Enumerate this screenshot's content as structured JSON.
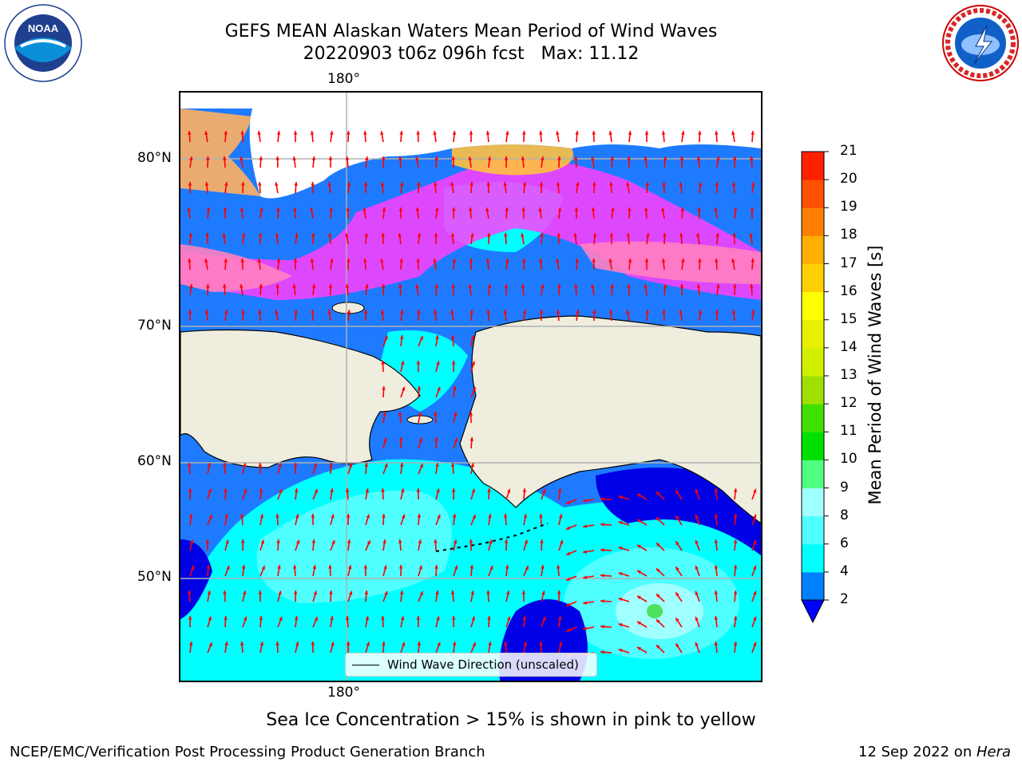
{
  "header": {
    "title_line1": "GEFS MEAN Alaskan Waters Mean Period of Wind Waves",
    "title_line2": "20220903 t06z 096h fcst   Max: 11.12"
  },
  "logos": {
    "left": "noaa-logo",
    "left_text": "NOAA",
    "right": "nws-logo",
    "right_text": "NATIONAL WEATHER SERVICE"
  },
  "map": {
    "lon_label_top": "180°",
    "lon_label_bottom": "180°",
    "lat_labels": [
      "80°N",
      "70°N",
      "60°N",
      "50°N"
    ],
    "legend_label": "Wind Wave Direction (unscaled)",
    "land_color": "#efedde",
    "ocean_colors": [
      "#0000e6",
      "#1e7bff",
      "#00ffff",
      "#50ffff",
      "#a0ffff"
    ],
    "ice_colors": [
      "#ff40ff",
      "#ff80c0",
      "#ffb060",
      "#ffc040"
    ],
    "arrow_color": "#ff0000"
  },
  "colorbar": {
    "title": "Mean Period of Wind Waves [s]",
    "levels": [
      2,
      4,
      6,
      8,
      9,
      10,
      11,
      12,
      13,
      14,
      15,
      16,
      17,
      18,
      19,
      20,
      21
    ],
    "tick_labels": [
      "21",
      "20",
      "19",
      "18",
      "17",
      "16",
      "15",
      "14",
      "13",
      "12",
      "11",
      "10",
      "9",
      "8",
      "6",
      "4",
      "2"
    ],
    "colors": [
      "#0080ff",
      "#00ffff",
      "#50ffff",
      "#a0ffff",
      "#50ff80",
      "#00e000",
      "#40e000",
      "#a0e000",
      "#d0f000",
      "#e8f000",
      "#ffff00",
      "#ffd000",
      "#ffb000",
      "#ff8000",
      "#ff5000",
      "#ff2000"
    ],
    "extend_color": "#0000ff"
  },
  "footer": {
    "note": "Sea Ice Concentration > 15% is shown in pink to yellow",
    "credit": "NCEP/EMC/Verification Post Processing Product Generation Branch",
    "date_prefix": "12 Sep 2022 on ",
    "date_machine": "Hera"
  }
}
